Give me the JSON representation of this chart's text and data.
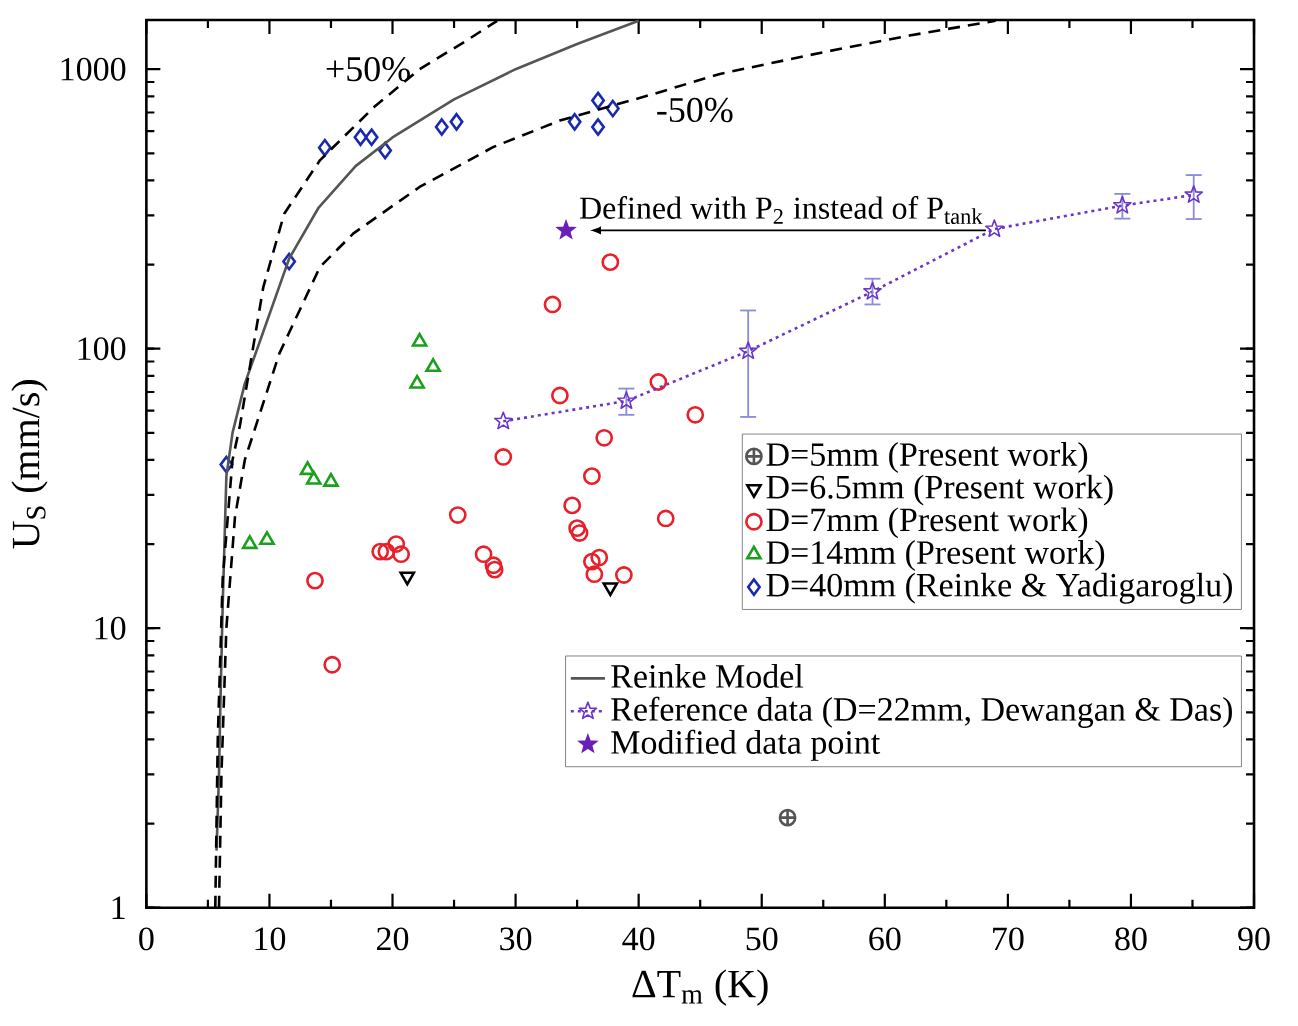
{
  "chart_data": {
    "type": "scatter",
    "xlabel": "ΔT$_{m}$ (K)",
    "ylabel": "U$_{S}$ (mm/s)",
    "log": "y",
    "grid": false,
    "legend": "right",
    "xlim": [
      0,
      90
    ],
    "ylim": [
      1,
      1500
    ],
    "xticks": [
      0,
      10,
      20,
      30,
      40,
      50,
      60,
      70,
      80,
      90
    ],
    "yticks": [
      1,
      10,
      100,
      1000
    ],
    "series": [
      {
        "name": "D=5mm (Present work)",
        "marker": "cross",
        "color": "#555555",
        "x": [
          52.1
        ],
        "values": [
          2.1
        ]
      },
      {
        "name": "D=6.5mm (Present work)",
        "marker": "triangle",
        "color": "#000000",
        "x": [
          21.2,
          37.7
        ],
        "values": [
          15.3,
          14.0
        ]
      },
      {
        "name": "D=7mm (Present work)",
        "marker": "circle",
        "color": "#e8202a",
        "x": [
          13.7,
          15.1,
          19.0,
          19.5,
          20.3,
          20.7,
          25.3,
          27.4,
          28.2,
          28.3,
          29.0,
          33.0,
          33.6,
          34.6,
          35.0,
          35.2,
          36.2,
          36.2,
          36.8,
          36.4,
          37.2,
          37.7,
          38.8,
          41.6,
          42.2,
          44.6
        ],
        "values": [
          14.8,
          7.4,
          18.8,
          18.8,
          20,
          18.4,
          25.4,
          18.4,
          16.8,
          16.2,
          41,
          144,
          68,
          27.5,
          22.8,
          21.9,
          35,
          17.3,
          17.9,
          15.6,
          48,
          204,
          15.5,
          76,
          24.7,
          58
        ]
      },
      {
        "name": "D=14mm (Present work)",
        "marker": "triangle",
        "color": "#1aa01a",
        "x": [
          8.4,
          9.8,
          13.1,
          13.6,
          15.0,
          22.0,
          22.2,
          23.3
        ],
        "values": [
          20,
          20.7,
          36.8,
          34,
          33.4,
          75,
          106,
          86
        ]
      },
      {
        "name": "D=40mm (Reinke & Yadigaroglu)",
        "marker": "diamond",
        "color": "#1a2ab0",
        "x": [
          6.5,
          11.6,
          14.5,
          17.4,
          18.3,
          19.4,
          24.0,
          25.2,
          34.8,
          36.7,
          36.7,
          37.9
        ],
        "values": [
          38.5,
          205,
          524,
          571,
          571,
          512,
          621,
          648,
          648,
          773,
          621,
          723
        ]
      },
      {
        "name": "Reinke Model",
        "type": "line",
        "line_style": "solid",
        "color": "#555555",
        "x": [
          5.7,
          5.9,
          6.0,
          6.2,
          6.5,
          7.0,
          8.0,
          9.5,
          11.6,
          14,
          17,
          20,
          25,
          30,
          35,
          40
        ],
        "values": [
          1.6,
          3,
          5,
          12,
          35,
          50,
          75,
          115,
          210,
          320,
          450,
          570,
          780,
          1000,
          1230,
          1490
        ]
      },
      {
        "type": "line",
        "line_style": "dashed",
        "color": "#000000",
        "x": [
          5.6,
          5.8,
          6.2,
          7.0,
          7.6,
          9.5,
          11.2,
          14.1,
          18.5,
          22.2,
          26.0,
          28.5
        ],
        "values": [
          1,
          4,
          15,
          40,
          53,
          166,
          304,
          472,
          732,
          1000,
          1265,
          1490
        ]
      },
      {
        "type": "line",
        "line_style": "dashed",
        "color": "#000000",
        "x": [
          5.9,
          6.1,
          6.5,
          7.2,
          8.0,
          10.8,
          14.1,
          16.8,
          22.2,
          28.2,
          33.6,
          41.2,
          46.6,
          55,
          62,
          69
        ],
        "values": [
          1,
          3,
          10,
          25,
          40,
          96,
          196,
          258,
          379,
          527,
          655,
          815,
          962,
          1150,
          1320,
          1490
        ]
      },
      {
        "name": "Reference data (D=22mm, Dewangan & Das)",
        "type": "line",
        "line_style": "dotted",
        "marker": "star",
        "color": "#6a35c8",
        "x": [
          29.0,
          39.0,
          48.9,
          59.0,
          68.9,
          79.3,
          85.1
        ],
        "values": [
          55,
          65,
          98,
          160,
          268,
          325,
          355
        ],
        "errors": [
          null,
          [
            58,
            72
          ],
          [
            57,
            137
          ],
          [
            144,
            178
          ],
          null,
          [
            292,
            358
          ],
          [
            291,
            418
          ]
        ]
      },
      {
        "name": "Modified  data point",
        "marker": "star",
        "color": "#6a1fb8",
        "x": [
          34.1
        ],
        "values": [
          265
        ]
      }
    ],
    "annotations": [
      "+50%",
      "-50%",
      {
        "text": "Defined with P$_{2}$ instead of P$_{tank}$",
        "x": 34.1,
        "y": 265
      }
    ]
  }
}
